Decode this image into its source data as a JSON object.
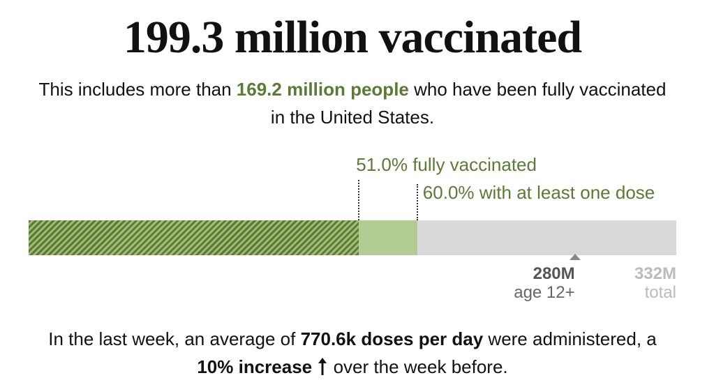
{
  "headline": "199.3 million vaccinated",
  "subhead": {
    "pre": "This includes more than ",
    "highlight": "169.2 million people",
    "post": " who have been fully vaccinated in the United States."
  },
  "chart_data": {
    "type": "bar",
    "orientation": "horizontal",
    "series": [
      {
        "name": "fully vaccinated",
        "value": 51.0,
        "label": "51.0% fully vaccinated",
        "color": "#5b7b35",
        "pattern": "hatched"
      },
      {
        "name": "with at least one dose",
        "value": 60.0,
        "label": "60.0% with at least one dose",
        "color": "#b2cc93"
      }
    ],
    "axis_max": 332,
    "axis_ticks": [
      {
        "value": 280,
        "label": "280M",
        "sublabel": "age 12+",
        "marker": true
      },
      {
        "value": 332,
        "label": "332M",
        "sublabel": "total",
        "marker": false
      }
    ],
    "track_color": "#d9d9d9",
    "label_color": "#5b7b35"
  },
  "footer": {
    "p1": "In the last week, an average of ",
    "b1": "770.6k doses per day",
    "p2": " were administered, a ",
    "b2": "10% increase",
    "p3": " over the week before.",
    "arrow_icon": "arrow-up-icon"
  }
}
